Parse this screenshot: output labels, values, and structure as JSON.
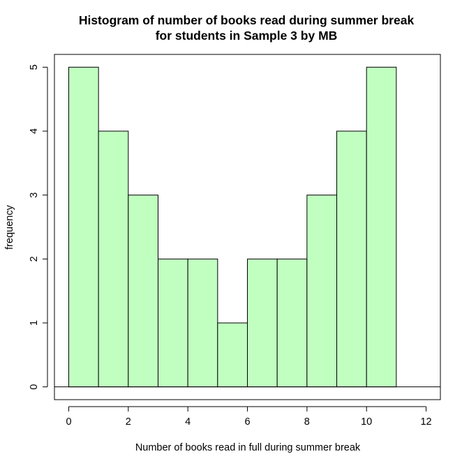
{
  "chart_data": {
    "type": "bar",
    "title": [
      "Histogram of number of books read during summer break",
      "for students in Sample 3 by MB"
    ],
    "xlabel": "Number of books read in full during summer break",
    "ylabel": "frequency",
    "bins": [
      {
        "from": 0,
        "to": 1,
        "count": 5
      },
      {
        "from": 1,
        "to": 2,
        "count": 4
      },
      {
        "from": 2,
        "to": 3,
        "count": 3
      },
      {
        "from": 3,
        "to": 4,
        "count": 2
      },
      {
        "from": 4,
        "to": 5,
        "count": 2
      },
      {
        "from": 5,
        "to": 6,
        "count": 1
      },
      {
        "from": 6,
        "to": 7,
        "count": 2
      },
      {
        "from": 7,
        "to": 8,
        "count": 2
      },
      {
        "from": 8,
        "to": 9,
        "count": 3
      },
      {
        "from": 9,
        "to": 10,
        "count": 4
      },
      {
        "from": 10,
        "to": 11,
        "count": 5
      }
    ],
    "xlim": [
      -0.48,
      12.48
    ],
    "ylim": [
      -0.2,
      5.2
    ],
    "xticks": [
      "0",
      "2",
      "4",
      "6",
      "8",
      "10",
      "12"
    ],
    "yticks": [
      "0",
      "1",
      "2",
      "3",
      "4",
      "5"
    ],
    "bar_color": "#c1ffc1",
    "baseline": true,
    "grid": false
  }
}
